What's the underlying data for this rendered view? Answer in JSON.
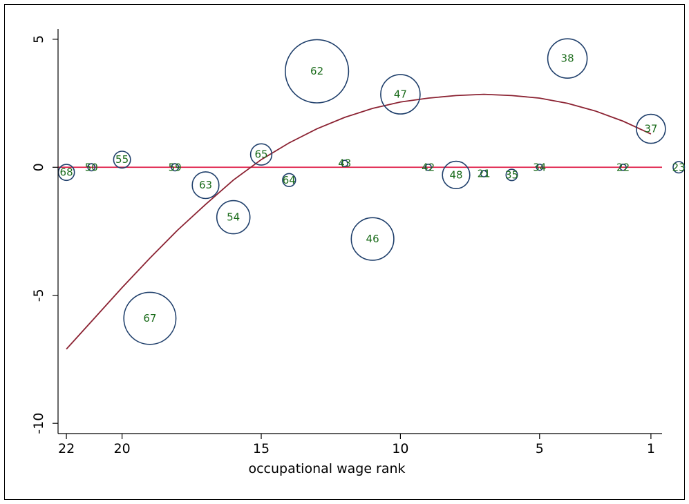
{
  "chart_data": {
    "type": "scatter",
    "title": "",
    "xlabel": "occupational wage rank",
    "ylabel": "",
    "x_reversed": true,
    "xlim": [
      22.3,
      0.6
    ],
    "ylim": [
      -10.4,
      5.4
    ],
    "x_ticks": [
      {
        "value": 22,
        "label": "22"
      },
      {
        "value": 20,
        "label": "20"
      },
      {
        "value": 15,
        "label": "15"
      },
      {
        "value": 10,
        "label": "10"
      },
      {
        "value": 5,
        "label": "5"
      },
      {
        "value": 1,
        "label": "1"
      }
    ],
    "y_ticks": [
      {
        "value": 5,
        "label": "5"
      },
      {
        "value": 0,
        "label": "0"
      },
      {
        "value": -5,
        "label": "-5"
      },
      {
        "value": -10,
        "label": "-10"
      }
    ],
    "grid": false,
    "colors": {
      "bubble_stroke": "#1f3f6b",
      "bubble_label": "#1a6b1a",
      "fit_curve": "#8b2232",
      "zero_line": "#e0204a",
      "axis": "#000000",
      "frame": "#000000"
    },
    "points": [
      {
        "label": "68",
        "x": 22,
        "y": -0.2,
        "size": 0.2
      },
      {
        "label": "50",
        "x": 21.1,
        "y": 0.0,
        "size": 0.04
      },
      {
        "label": "55",
        "x": 20,
        "y": 0.3,
        "size": 0.22
      },
      {
        "label": "59",
        "x": 18.1,
        "y": 0.0,
        "size": 0.04
      },
      {
        "label": "63",
        "x": 17,
        "y": -0.7,
        "size": 0.55
      },
      {
        "label": "54",
        "x": 16,
        "y": -1.95,
        "size": 0.85
      },
      {
        "label": "67",
        "x": 19,
        "y": -5.9,
        "size": 2.1
      },
      {
        "label": "65",
        "x": 15,
        "y": 0.5,
        "size": 0.35
      },
      {
        "label": "64",
        "x": 14,
        "y": -0.5,
        "size": 0.13
      },
      {
        "label": "62",
        "x": 13,
        "y": 3.75,
        "size": 3.1
      },
      {
        "label": "43",
        "x": 12,
        "y": 0.15,
        "size": 0.03
      },
      {
        "label": "46",
        "x": 11,
        "y": -2.8,
        "size": 1.4
      },
      {
        "label": "47",
        "x": 10,
        "y": 2.85,
        "size": 1.2
      },
      {
        "label": "42",
        "x": 9,
        "y": 0.0,
        "size": 0.03
      },
      {
        "label": "48",
        "x": 8,
        "y": -0.3,
        "size": 0.58
      },
      {
        "label": "21",
        "x": 7,
        "y": -0.25,
        "size": 0.03
      },
      {
        "label": "35",
        "x": 6,
        "y": -0.3,
        "size": 0.1
      },
      {
        "label": "34",
        "x": 5,
        "y": 0.0,
        "size": 0.03
      },
      {
        "label": "38",
        "x": 4,
        "y": 4.25,
        "size": 1.2
      },
      {
        "label": "22",
        "x": 2,
        "y": 0.0,
        "size": 0.03
      },
      {
        "label": "37",
        "x": 1,
        "y": 1.5,
        "size": 0.65
      },
      {
        "label": "23",
        "x": 0,
        "y": 0.0,
        "size": 0.1
      }
    ],
    "fit_curve": [
      {
        "x": 22,
        "y": -7.1
      },
      {
        "x": 21,
        "y": -5.9
      },
      {
        "x": 20,
        "y": -4.7
      },
      {
        "x": 19,
        "y": -3.55
      },
      {
        "x": 18,
        "y": -2.45
      },
      {
        "x": 17,
        "y": -1.45
      },
      {
        "x": 16,
        "y": -0.5
      },
      {
        "x": 15,
        "y": 0.3
      },
      {
        "x": 14,
        "y": 0.95
      },
      {
        "x": 13,
        "y": 1.5
      },
      {
        "x": 12,
        "y": 1.95
      },
      {
        "x": 11,
        "y": 2.3
      },
      {
        "x": 10,
        "y": 2.55
      },
      {
        "x": 9,
        "y": 2.7
      },
      {
        "x": 8,
        "y": 2.8
      },
      {
        "x": 7,
        "y": 2.85
      },
      {
        "x": 6,
        "y": 2.8
      },
      {
        "x": 5,
        "y": 2.7
      },
      {
        "x": 4,
        "y": 2.5
      },
      {
        "x": 3,
        "y": 2.2
      },
      {
        "x": 2,
        "y": 1.8
      },
      {
        "x": 1,
        "y": 1.3
      }
    ],
    "reference_line": {
      "y": 0
    }
  }
}
